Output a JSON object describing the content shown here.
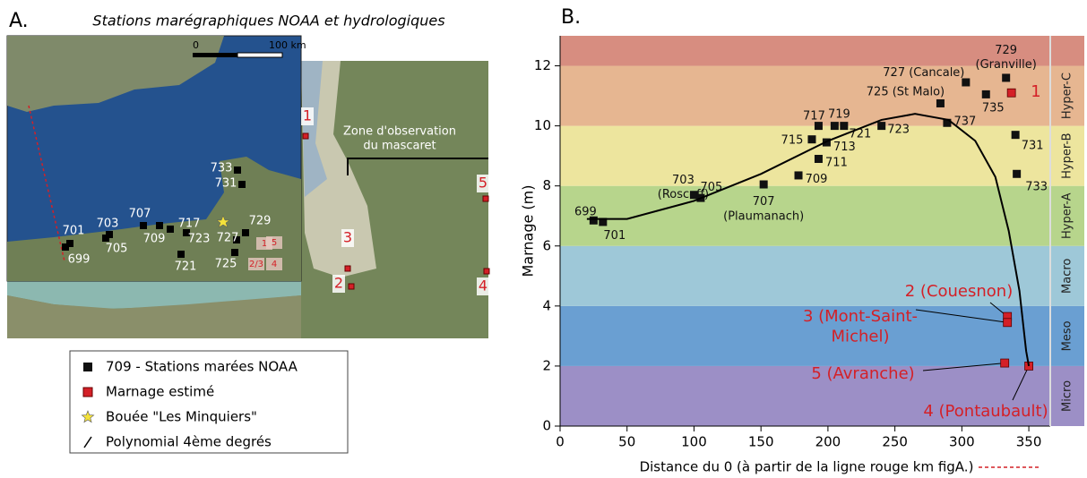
{
  "panel_a": {
    "label": "A.",
    "title": "Stations marégraphiques NOAA et hydrologiques",
    "scale_labels": [
      "0",
      "100 km"
    ],
    "stations": [
      "701",
      "703",
      "705",
      "707",
      "709",
      "717",
      "723",
      "721",
      "733",
      "731",
      "729",
      "727",
      "725",
      "699"
    ],
    "inset_sites": [
      "1",
      "5",
      "2/3",
      "4"
    ],
    "sites": [
      "1",
      "3",
      "2",
      "5",
      "4"
    ],
    "zone": [
      "Zone d'observation",
      "du mascaret"
    ],
    "buoy": "Bouée \"Les Minquiers\""
  },
  "chart_data": {
    "type": "scatter",
    "label": "B.",
    "x_label": "Distance du 0 (à partir de la ligne rouge km figA.)",
    "y_label": "Marnage (m)",
    "xlim": [
      0,
      366
    ],
    "ylim": [
      0,
      13
    ],
    "xticks": [
      0,
      50,
      100,
      150,
      200,
      250,
      300,
      350
    ],
    "yticks": [
      0,
      2,
      4,
      6,
      8,
      10,
      12
    ],
    "bands": [
      {
        "name": "Micro",
        "range": [
          0,
          2
        ],
        "color": "#9c8fc6"
      },
      {
        "name": "Meso",
        "range": [
          2,
          4
        ],
        "color": "#6a9fd2"
      },
      {
        "name": "Macro",
        "range": [
          4,
          6
        ],
        "color": "#9ec8d8"
      },
      {
        "name": "Hyper-A",
        "range": [
          6,
          8
        ],
        "color": "#b7d58c"
      },
      {
        "name": "Hyper-B",
        "range": [
          8,
          10
        ],
        "color": "#ede59e"
      },
      {
        "name": "Hyper-C",
        "range": [
          10,
          12
        ],
        "color": "#e6b691"
      },
      {
        "name": null,
        "range": [
          12,
          13
        ],
        "color": "#d78d80"
      }
    ],
    "series": [
      {
        "name": "709 - Stations marées NOAA",
        "color": "#111111",
        "x": [
          25,
          32,
          100,
          105,
          152,
          178,
          193,
          199,
          188,
          193,
          205,
          212,
          240,
          284,
          303,
          333,
          318,
          289,
          340,
          341
        ],
        "values": [
          6.85,
          6.8,
          7.7,
          7.6,
          8.05,
          8.35,
          8.9,
          9.45,
          9.55,
          10.0,
          10.0,
          10.0,
          10.0,
          10.75,
          11.45,
          11.6,
          11.05,
          10.1,
          9.7,
          8.4
        ],
        "labels": [
          [
            "699"
          ],
          [
            "701"
          ],
          [
            "703",
            "(Roscoff)"
          ],
          [
            "705"
          ],
          [
            "707",
            "(Plaumanach)"
          ],
          [
            "709"
          ],
          [
            "711"
          ],
          [
            "713"
          ],
          [
            "715"
          ],
          [
            "717"
          ],
          [
            "719"
          ],
          [
            "721"
          ],
          [
            "723"
          ],
          [
            "725 (St Malo)"
          ],
          [
            "727 (Cancale)"
          ],
          [
            "729",
            "(Granville)"
          ],
          [
            "735"
          ],
          [
            "737"
          ],
          [
            "731"
          ],
          [
            "733"
          ]
        ]
      },
      {
        "name": "Marnage estimé",
        "color": "#d42027",
        "x": [
          337,
          334,
          334,
          332,
          350
        ],
        "values": [
          11.1,
          3.65,
          3.45,
          2.1,
          2.0
        ],
        "labels": [
          [
            "1"
          ],
          [
            "2 (Couesnon)"
          ],
          [
            "3 (Mont-Saint-",
            "Michel)"
          ],
          [
            "5 (Avranche)"
          ],
          [
            "4 (Pontaubault)"
          ]
        ]
      },
      {
        "name": "Polynomial 4ème degrés",
        "type": "line",
        "color": "#000000",
        "x": [
          20,
          50,
          100,
          150,
          200,
          240,
          265,
          290,
          310,
          325,
          335,
          343,
          348,
          350
        ],
        "values": [
          6.9,
          6.9,
          7.5,
          8.4,
          9.5,
          10.2,
          10.4,
          10.2,
          9.5,
          8.3,
          6.5,
          4.5,
          2.5,
          2.0
        ]
      }
    ]
  }
}
